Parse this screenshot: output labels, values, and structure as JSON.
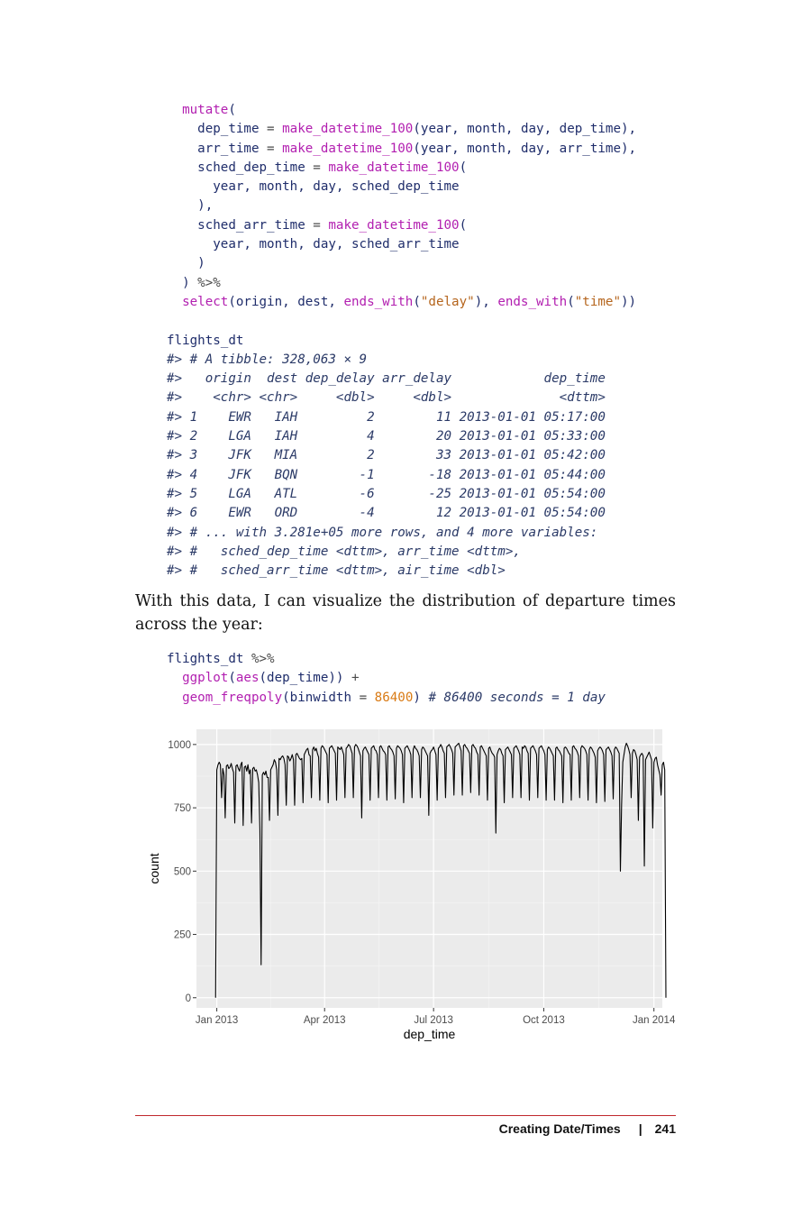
{
  "code_block_1": {
    "lines": [
      [
        {
          "t": "  "
        },
        {
          "c": "kw",
          "t": "mutate"
        },
        {
          "t": "("
        }
      ],
      [
        {
          "t": "    dep_time "
        },
        {
          "c": "op",
          "t": "="
        },
        {
          "t": " "
        },
        {
          "c": "kw",
          "t": "make_datetime_100"
        },
        {
          "t": "(year, month, day, dep_time),"
        }
      ],
      [
        {
          "t": "    arr_time "
        },
        {
          "c": "op",
          "t": "="
        },
        {
          "t": " "
        },
        {
          "c": "kw",
          "t": "make_datetime_100"
        },
        {
          "t": "(year, month, day, arr_time),"
        }
      ],
      [
        {
          "t": "    sched_dep_time "
        },
        {
          "c": "op",
          "t": "="
        },
        {
          "t": " "
        },
        {
          "c": "kw",
          "t": "make_datetime_100"
        },
        {
          "t": "("
        }
      ],
      [
        {
          "t": "      year, month, day, sched_dep_time"
        }
      ],
      [
        {
          "t": "    ),"
        }
      ],
      [
        {
          "t": "    sched_arr_time "
        },
        {
          "c": "op",
          "t": "="
        },
        {
          "t": " "
        },
        {
          "c": "kw",
          "t": "make_datetime_100"
        },
        {
          "t": "("
        }
      ],
      [
        {
          "t": "      year, month, day, sched_arr_time"
        }
      ],
      [
        {
          "t": "    )"
        }
      ],
      [
        {
          "t": "  ) "
        },
        {
          "c": "op",
          "t": "%>%"
        }
      ],
      [
        {
          "t": "  "
        },
        {
          "c": "kw",
          "t": "select"
        },
        {
          "t": "(origin, dest, "
        },
        {
          "c": "kw",
          "t": "ends_with"
        },
        {
          "t": "("
        },
        {
          "c": "str",
          "t": "\"delay\""
        },
        {
          "t": "), "
        },
        {
          "c": "kw",
          "t": "ends_with"
        },
        {
          "t": "("
        },
        {
          "c": "str",
          "t": "\"time\""
        },
        {
          "t": "))"
        }
      ],
      [
        {
          "t": ""
        }
      ],
      [
        {
          "t": "flights_dt"
        }
      ],
      [
        {
          "c": "out",
          "t": "#> # A tibble: 328,063 × 9"
        }
      ],
      [
        {
          "c": "out",
          "t": "#>   origin  dest dep_delay arr_delay            dep_time"
        }
      ],
      [
        {
          "c": "out",
          "t": "#>    <chr> <chr>     <dbl>     <dbl>              <dttm>"
        }
      ],
      [
        {
          "c": "out",
          "t": "#> 1    EWR   IAH         2        11 2013-01-01 05:17:00"
        }
      ],
      [
        {
          "c": "out",
          "t": "#> 2    LGA   IAH         4        20 2013-01-01 05:33:00"
        }
      ],
      [
        {
          "c": "out",
          "t": "#> 3    JFK   MIA         2        33 2013-01-01 05:42:00"
        }
      ],
      [
        {
          "c": "out",
          "t": "#> 4    JFK   BQN        -1       -18 2013-01-01 05:44:00"
        }
      ],
      [
        {
          "c": "out",
          "t": "#> 5    LGA   ATL        -6       -25 2013-01-01 05:54:00"
        }
      ],
      [
        {
          "c": "out",
          "t": "#> 6    EWR   ORD        -4        12 2013-01-01 05:54:00"
        }
      ],
      [
        {
          "c": "out",
          "t": "#> # ... with 3.281e+05 more rows, and 4 more variables:"
        }
      ],
      [
        {
          "c": "out",
          "t": "#> #   sched_dep_time <dttm>, arr_time <dttm>,"
        }
      ],
      [
        {
          "c": "out",
          "t": "#> #   sched_arr_time <dttm>, air_time <dbl>"
        }
      ]
    ]
  },
  "paragraph": "With this data, I can visualize the distribution of departure times across the year:",
  "code_block_2": {
    "lines": [
      [
        {
          "t": "flights_dt "
        },
        {
          "c": "op",
          "t": "%>%"
        }
      ],
      [
        {
          "t": "  "
        },
        {
          "c": "kw",
          "t": "ggplot"
        },
        {
          "t": "("
        },
        {
          "c": "kw",
          "t": "aes"
        },
        {
          "t": "(dep_time)) "
        },
        {
          "c": "op",
          "t": "+"
        }
      ],
      [
        {
          "t": "  "
        },
        {
          "c": "kw",
          "t": "geom_freqpoly"
        },
        {
          "t": "(binwidth "
        },
        {
          "c": "op",
          "t": "="
        },
        {
          "t": " "
        },
        {
          "c": "num",
          "t": "86400"
        },
        {
          "t": ") "
        },
        {
          "c": "cm",
          "t": "# 86400 seconds = 1 day"
        }
      ]
    ]
  },
  "chart_data": {
    "type": "line",
    "xlabel": "dep_time",
    "ylabel": "count",
    "x_ticks": [
      "Jan 2013",
      "Apr 2013",
      "Jul 2013",
      "Oct 2013",
      "Jan 2014"
    ],
    "y_ticks": [
      0,
      250,
      500,
      750,
      1000
    ],
    "ylim": [
      -40,
      1060
    ],
    "xlim": [
      "2012-12-15",
      "2014-01-08"
    ],
    "grid": true,
    "series_color": "#000000",
    "panel_color": "#ebebeb",
    "series": [
      {
        "start_date": "2012-12-31",
        "binwidth_days": 1,
        "values": [
          0,
          900,
          920,
          930,
          920,
          790,
          905,
          880,
          710,
          915,
          920,
          905,
          910,
          925,
          905,
          890,
          690,
          915,
          920,
          905,
          895,
          920,
          930,
          680,
          910,
          915,
          895,
          920,
          885,
          900,
          690,
          905,
          910,
          895,
          900,
          880,
          850,
          660,
          130,
          880,
          890,
          880,
          895,
          870,
          870,
          700,
          900,
          910,
          920,
          940,
          930,
          900,
          720,
          945,
          940,
          950,
          955,
          945,
          920,
          760,
          955,
          950,
          935,
          945,
          960,
          940,
          760,
          960,
          965,
          955,
          945,
          940,
          945,
          770,
          960,
          970,
          980,
          985,
          960,
          955,
          790,
          980,
          990,
          975,
          985,
          965,
          950,
          780,
          985,
          995,
          990,
          980,
          970,
          960,
          770,
          985,
          990,
          995,
          985,
          975,
          965,
          780,
          990,
          985,
          980,
          990,
          975,
          960,
          790,
          985,
          990,
          1000,
          995,
          980,
          965,
          790,
          990,
          1000,
          995,
          985,
          970,
          955,
          710,
          975,
          985,
          990,
          980,
          970,
          960,
          780,
          985,
          990,
          995,
          980,
          975,
          960,
          790,
          990,
          995,
          985,
          975,
          970,
          960,
          780,
          990,
          995,
          985,
          980,
          970,
          955,
          785,
          985,
          995,
          990,
          985,
          975,
          960,
          770,
          985,
          990,
          995,
          985,
          975,
          960,
          790,
          980,
          995,
          985,
          980,
          970,
          955,
          790,
          980,
          990,
          985,
          975,
          965,
          955,
          720,
          965,
          975,
          980,
          990,
          975,
          960,
          780,
          985,
          990,
          1000,
          990,
          975,
          965,
          790,
          990,
          995,
          1000,
          990,
          980,
          965,
          800,
          990,
          995,
          1000,
          1005,
          990,
          975,
          800,
          995,
          1000,
          990,
          985,
          975,
          965,
          810,
          995,
          1000,
          990,
          985,
          970,
          960,
          800,
          990,
          995,
          985,
          975,
          965,
          955,
          780,
          985,
          990,
          975,
          965,
          960,
          950,
          650,
          960,
          975,
          985,
          980,
          965,
          955,
          770,
          980,
          985,
          990,
          980,
          970,
          960,
          790,
          985,
          990,
          995,
          985,
          975,
          960,
          790,
          990,
          985,
          995,
          990,
          975,
          965,
          780,
          985,
          990,
          995,
          985,
          975,
          960,
          790,
          985,
          990,
          995,
          985,
          975,
          960,
          780,
          980,
          990,
          985,
          975,
          965,
          955,
          780,
          985,
          990,
          980,
          975,
          965,
          955,
          770,
          985,
          990,
          985,
          975,
          965,
          960,
          780,
          990,
          995,
          985,
          980,
          970,
          955,
          790,
          985,
          995,
          990,
          985,
          975,
          960,
          780,
          980,
          990,
          985,
          975,
          965,
          950,
          770,
          975,
          985,
          990,
          985,
          975,
          960,
          775,
          980,
          985,
          990,
          980,
          970,
          955,
          785,
          980,
          990,
          985,
          975,
          965,
          500,
          760,
          930,
          960,
          990,
          1005,
          995,
          980,
          960,
          790,
          965,
          980,
          975,
          960,
          940,
          700,
          950,
          960,
          965,
          955,
          520,
          940,
          950,
          960,
          970,
          955,
          940,
          670,
          930,
          945,
          950,
          920,
          900,
          880,
          800,
          920,
          930,
          900,
          0
        ]
      }
    ]
  },
  "footer": {
    "section": "Creating Date/Times",
    "separator": "|",
    "page": "241"
  }
}
